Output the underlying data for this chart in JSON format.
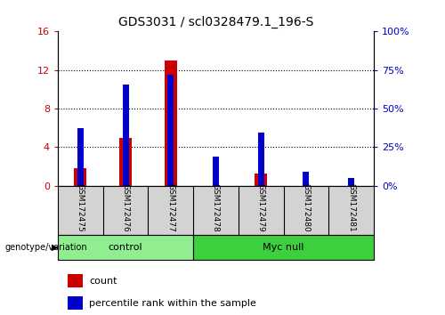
{
  "title": "GDS3031 / scl0328479.1_196-S",
  "samples": [
    "GSM172475",
    "GSM172476",
    "GSM172477",
    "GSM172478",
    "GSM172479",
    "GSM172480",
    "GSM172481"
  ],
  "count_values": [
    1.8,
    5.0,
    13.0,
    0.0,
    1.3,
    0.0,
    0.0
  ],
  "percentile_values": [
    6.0,
    10.5,
    11.5,
    3.0,
    5.5,
    1.5,
    0.8
  ],
  "count_color": "#cc0000",
  "percentile_color": "#0000cc",
  "ylim_left": [
    0,
    16
  ],
  "ylim_right": [
    0,
    100
  ],
  "yticks_left": [
    0,
    4,
    8,
    12,
    16
  ],
  "yticks_right": [
    0,
    25,
    50,
    75,
    100
  ],
  "ytick_labels_left": [
    "0",
    "4",
    "8",
    "12",
    "16"
  ],
  "ytick_labels_right": [
    "0%",
    "25%",
    "50%",
    "75%",
    "100%"
  ],
  "groups": [
    {
      "label": "control",
      "indices": [
        0,
        1,
        2
      ],
      "color": "#90ee90"
    },
    {
      "label": "Myc null",
      "indices": [
        3,
        4,
        5,
        6
      ],
      "color": "#3ecf3e"
    }
  ],
  "genotype_label": "genotype/variation",
  "legend_count": "count",
  "legend_percentile": "percentile rank within the sample",
  "count_bar_width": 0.28,
  "percentile_bar_width": 0.14,
  "plot_bg": "#ffffff",
  "grid_color": "#000000",
  "label_bg": "#d3d3d3"
}
